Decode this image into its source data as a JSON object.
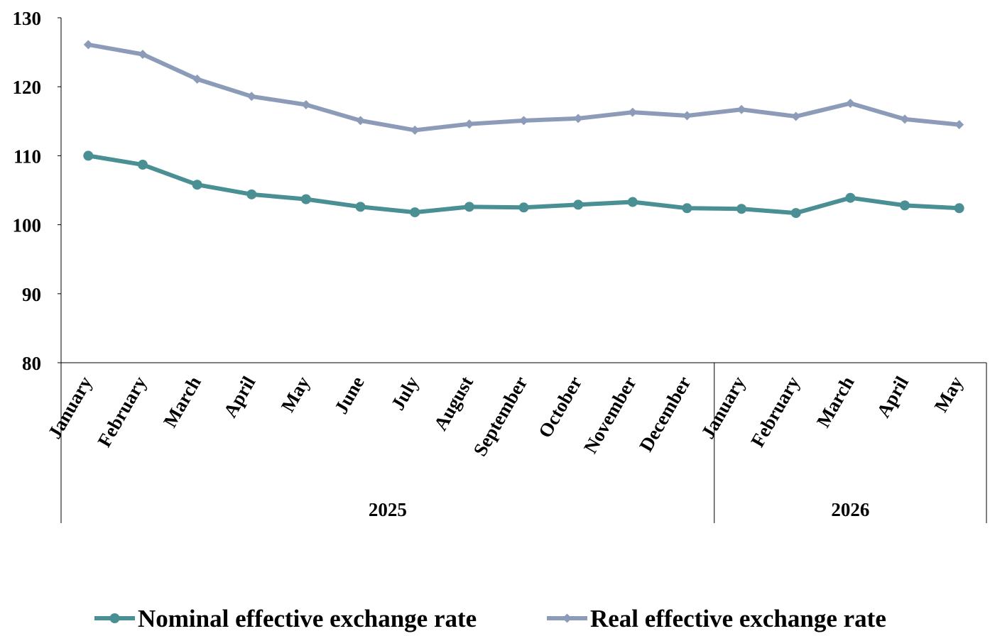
{
  "chart_data": {
    "type": "line",
    "title": "",
    "xlabel": "",
    "ylabel": "",
    "ylim": [
      80,
      130
    ],
    "yticks": [
      80,
      90,
      100,
      110,
      120,
      130
    ],
    "grid": false,
    "legend_placement": "bottom-center",
    "categories": [
      "January",
      "February",
      "March",
      "April",
      "May",
      "June",
      "July",
      "August",
      "September",
      "October",
      "November",
      "December",
      "January",
      "February",
      "March",
      "April",
      "May"
    ],
    "year_groups": [
      {
        "label": "2025",
        "count": 12
      },
      {
        "label": "2026",
        "count": 5
      }
    ],
    "series": [
      {
        "name": "Nominal effective exchange rate",
        "color": "#4a8f93",
        "marker": "circle",
        "values": [
          110.0,
          108.7,
          105.8,
          104.4,
          103.7,
          102.6,
          101.8,
          102.6,
          102.5,
          102.9,
          103.3,
          102.4,
          102.3,
          101.7,
          103.9,
          102.8,
          102.4
        ]
      },
      {
        "name": "Real effective exchange rate",
        "color": "#8c9cb8",
        "marker": "diamond",
        "values": [
          126.1,
          124.7,
          121.1,
          118.6,
          117.4,
          115.1,
          113.7,
          114.6,
          115.1,
          115.4,
          116.3,
          115.8,
          116.7,
          115.7,
          117.6,
          115.3,
          114.5
        ]
      }
    ]
  }
}
